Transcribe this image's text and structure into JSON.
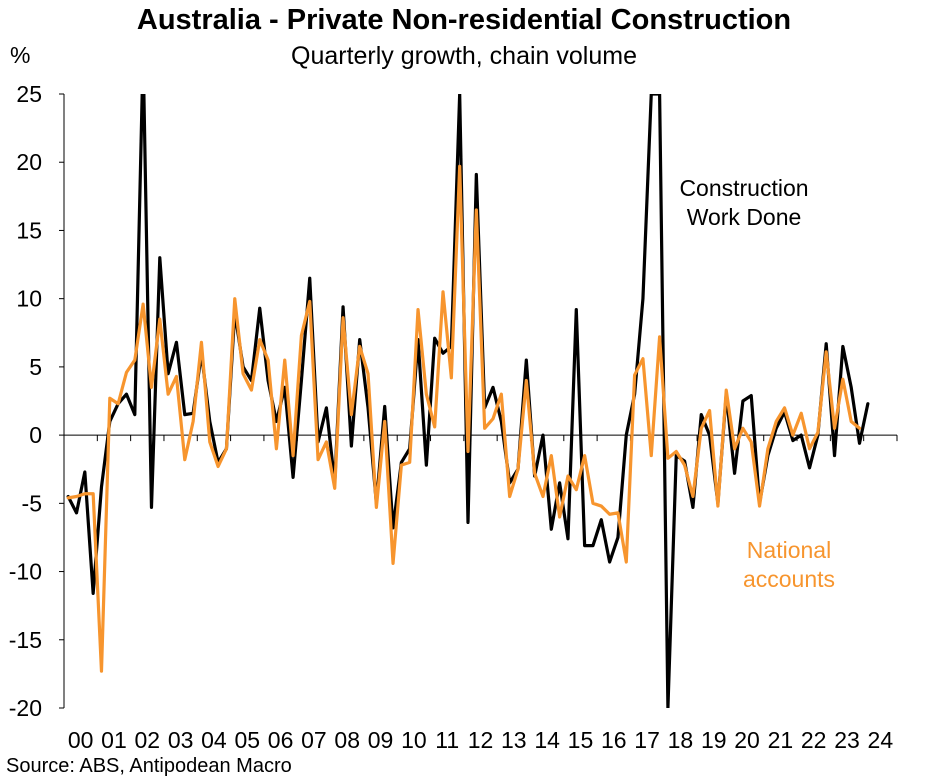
{
  "title": "Australia - Private Non-residential Construction",
  "subtitle": "Quarterly growth, chain volume",
  "unit": "%",
  "source": "Source: ABS, Antipodean Macro",
  "colors": {
    "construction": "#000000",
    "national": "#f7952e",
    "axis": "#000000"
  },
  "chart_data": {
    "type": "line",
    "title": "Australia - Private Non-residential Construction",
    "subtitle": "Quarterly growth, chain volume",
    "ylabel": "%",
    "ylim": [
      -20,
      25
    ],
    "yticks": [
      25,
      20,
      15,
      10,
      5,
      0,
      -5,
      -10,
      -15,
      -20
    ],
    "xtick_labels": [
      "00",
      "01",
      "02",
      "03",
      "04",
      "05",
      "06",
      "07",
      "08",
      "09",
      "10",
      "11",
      "12",
      "13",
      "14",
      "15",
      "16",
      "17",
      "18",
      "19",
      "20",
      "21",
      "22",
      "23",
      "24"
    ],
    "x_start_label": "2000 Q1",
    "frequency": "quarterly",
    "grid": false,
    "series": [
      {
        "name": "Construction Work Done",
        "label_lines": [
          "Construction",
          "Work Done"
        ],
        "color": "#000000",
        "values": [
          -4.5,
          -5.7,
          -2.7,
          -11.6,
          -3.8,
          1.0,
          2.3,
          3.0,
          1.5,
          28.0,
          -5.3,
          13.0,
          4.5,
          6.8,
          1.5,
          1.6,
          6.0,
          1.0,
          -2.0,
          -1.0,
          9.0,
          5.0,
          4.0,
          9.3,
          4.0,
          1.0,
          3.5,
          -3.1,
          4.0,
          11.5,
          -0.5,
          2.0,
          -3.5,
          9.4,
          -0.8,
          7.0,
          2.0,
          -5.0,
          2.1,
          -6.8,
          -2.0,
          -1.0,
          7.0,
          -2.2,
          7.1,
          6.0,
          6.5,
          25.0,
          -6.4,
          19.1,
          2.0,
          3.5,
          1.0,
          -3.5,
          -2.5,
          5.5,
          -3.0,
          0.0,
          -6.9,
          -3.5,
          -7.6,
          9.2,
          -8.1,
          -8.1,
          -6.2,
          -9.3,
          -7.5,
          0.0,
          3.0,
          10.0,
          25.0,
          25.0,
          -20.0,
          -1.5,
          -1.9,
          -5.3,
          1.5,
          0.0,
          -5.0,
          3.0,
          -2.8,
          2.5,
          2.9,
          -5.0,
          -1.5,
          0.5,
          1.7,
          -0.4,
          0.0,
          -2.4,
          0.0,
          6.7,
          -1.5,
          6.5,
          3.5,
          -0.6,
          2.3
        ]
      },
      {
        "name": "National accounts",
        "label_lines": [
          "National",
          "accounts"
        ],
        "color": "#f7952e",
        "values": [
          -4.6,
          -4.5,
          -4.3,
          -4.3,
          -17.3,
          2.7,
          2.3,
          4.6,
          5.5,
          9.6,
          3.5,
          8.5,
          3.0,
          4.3,
          -1.8,
          1.0,
          6.8,
          -0.5,
          -2.3,
          -1.0,
          10.0,
          4.5,
          3.3,
          7.0,
          5.5,
          -1.0,
          5.5,
          -1.5,
          7.3,
          9.8,
          -1.8,
          -0.5,
          -3.9,
          8.6,
          1.5,
          6.5,
          4.5,
          -5.3,
          1.0,
          -9.4,
          -2.2,
          -2.0,
          9.2,
          3.0,
          0.6,
          10.5,
          4.2,
          19.7,
          -1.2,
          16.5,
          0.5,
          1.2,
          3.0,
          -4.5,
          -2.5,
          4.0,
          -2.8,
          -4.5,
          -1.5,
          -6.0,
          -3.0,
          -4.0,
          -1.5,
          -5.0,
          -5.2,
          -5.8,
          -5.7,
          -9.3,
          4.4,
          5.6,
          -1.5,
          7.2,
          -1.7,
          -1.2,
          -2.2,
          -4.5,
          0.5,
          1.8,
          -5.2,
          3.3,
          -1.0,
          0.5,
          -0.5,
          -5.2,
          -1.0,
          1.0,
          2.0,
          0.0,
          1.6,
          -1.0,
          0.2,
          6.1,
          0.5,
          4.1,
          1.0,
          0.5
        ]
      }
    ]
  }
}
